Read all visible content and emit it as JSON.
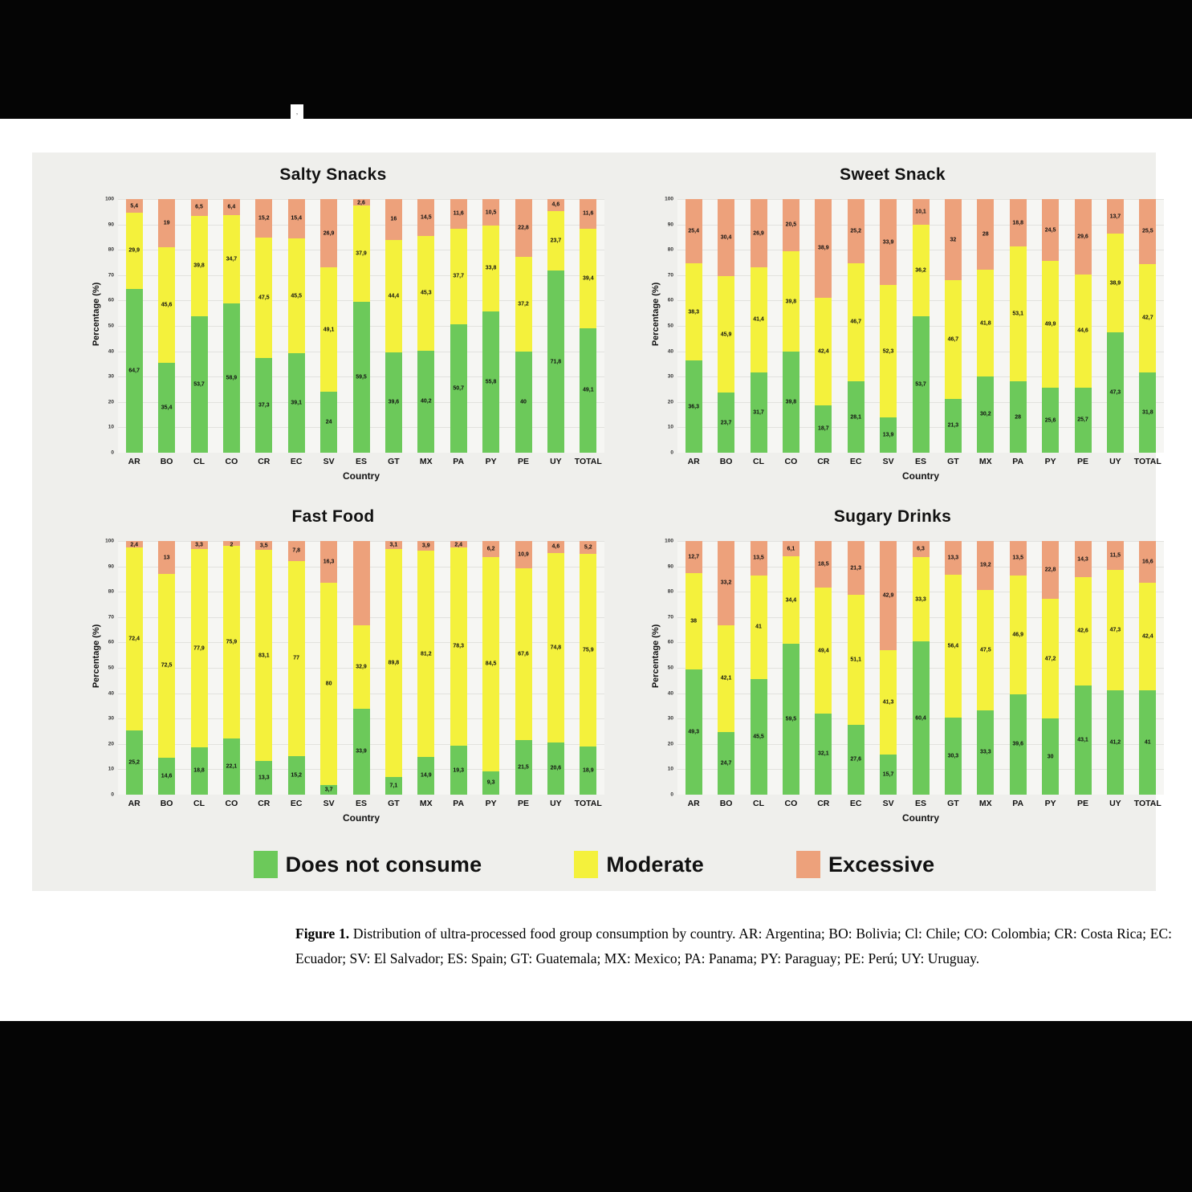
{
  "legend": [
    {
      "name": "Does not consume",
      "color": "#6cc95a"
    },
    {
      "name": "Moderate",
      "color": "#f4f13c"
    },
    {
      "name": "Excessive",
      "color": "#eda17b"
    }
  ],
  "caption": {
    "label": "Figure 1.",
    "text": " Distribution of ultra-processed food group consumption by country. AR: Argentina; BO: Bolivia; Cl: Chile; CO: Colombia; CR: Costa Rica; EC: Ecuador; SV: El Salvador; ES: Spain; GT: Guatemala; MX: Mexico; PA: Panama; PY: Paraguay; PE: Perú; UY: Uruguay."
  },
  "chart_data": {
    "type": "bar",
    "stacked": true,
    "ylabel": "Percentage (%)",
    "xlabel": "Country",
    "ylim": [
      0,
      100
    ],
    "yticks": [
      0,
      10,
      20,
      30,
      40,
      50,
      60,
      70,
      80,
      90,
      100
    ],
    "grid": true,
    "legend_position": "bottom",
    "categories": [
      "AR",
      "BO",
      "CL",
      "CO",
      "CR",
      "EC",
      "SV",
      "ES",
      "GT",
      "MX",
      "PA",
      "PY",
      "PE",
      "UY",
      "TOTAL"
    ],
    "charts": [
      {
        "key": "salty-snacks",
        "title": "Salty Snacks",
        "series": [
          {
            "name": "Does not consume",
            "values": [
              64.7,
              35.4,
              53.7,
              58.9,
              37.3,
              39.1,
              24,
              59.5,
              39.6,
              40.2,
              50.7,
              55.8,
              40,
              71.8,
              49.1
            ],
            "labels": [
              "64,7",
              "35,4",
              "53,7",
              "58,9",
              "37,3",
              "39,1",
              "24",
              "59,5",
              "39,6",
              "40,2",
              "50,7",
              "55,8",
              "40",
              "71,8",
              "49,1"
            ]
          },
          {
            "name": "Moderate",
            "values": [
              29.9,
              45.6,
              39.8,
              34.7,
              47.5,
              45.5,
              49.1,
              37.9,
              44.4,
              45.3,
              37.7,
              33.8,
              37.2,
              23.7,
              39.4
            ],
            "labels": [
              "29,9",
              "45,6",
              "39,8",
              "34,7",
              "47,5",
              "45,5",
              "49,1",
              "37,9",
              "44,4",
              "45,3",
              "37,7",
              "33,8",
              "37,2",
              "23,7",
              "39,4"
            ]
          },
          {
            "name": "Excessive",
            "values": [
              5.4,
              19,
              6.5,
              6.4,
              15.2,
              15.4,
              26.9,
              2.6,
              16,
              14.5,
              11.6,
              10.5,
              22.8,
              4.6,
              11.6
            ],
            "labels": [
              "5,4",
              "19",
              "6,5",
              "6,4",
              "15,2",
              "15,4",
              "26,9",
              "2,6",
              "16",
              "14,5",
              "11,6",
              "10,5",
              "22,8",
              "4,6",
              "11,6"
            ]
          }
        ]
      },
      {
        "key": "sweet-snack",
        "title": "Sweet Snack",
        "series": [
          {
            "name": "Does not consume",
            "values": [
              36.3,
              23.7,
              31.7,
              39.8,
              18.7,
              28.1,
              13.9,
              53.7,
              21.3,
              30.2,
              28,
              25.6,
              25.7,
              47.3,
              31.8
            ],
            "labels": [
              "36,3",
              "23,7",
              "31,7",
              "39,8",
              "18,7",
              "28,1",
              "13,9",
              "53,7",
              "21,3",
              "30,2",
              "28",
              "25,6",
              "25,7",
              "47,3",
              "31,8"
            ]
          },
          {
            "name": "Moderate",
            "values": [
              38.3,
              45.9,
              41.4,
              39.8,
              42.4,
              46.7,
              52.3,
              36.2,
              46.7,
              41.8,
              53.1,
              49.9,
              44.6,
              38.9,
              42.7
            ],
            "labels": [
              "38,3",
              "45,9",
              "41,4",
              "39,8",
              "42,4",
              "46,7",
              "52,3",
              "36,2",
              "46,7",
              "41,8",
              "53,1",
              "49,9",
              "44,6",
              "38,9",
              "42,7"
            ]
          },
          {
            "name": "Excessive",
            "values": [
              25.4,
              30.4,
              26.9,
              20.5,
              38.9,
              25.2,
              33.9,
              10.1,
              32,
              28,
              18.8,
              24.5,
              29.6,
              13.7,
              25.5
            ],
            "labels": [
              "25,4",
              "30,4",
              "26,9",
              "20,5",
              "38,9",
              "25,2",
              "33,9",
              "10,1",
              "32",
              "28",
              "18,8",
              "24,5",
              "29,6",
              "13,7",
              "25,5"
            ]
          }
        ]
      },
      {
        "key": "fast-food",
        "title": "Fast Food",
        "series": [
          {
            "name": "Does not consume",
            "values": [
              25.2,
              14.6,
              18.8,
              22.1,
              13.3,
              15.2,
              3.7,
              33.9,
              7.1,
              14.9,
              19.3,
              9.3,
              21.5,
              20.6,
              18.9
            ],
            "labels": [
              "25,2",
              "14,6",
              "18,8",
              "22,1",
              "13,3",
              "15,2",
              "3,7",
              "33,9",
              "7,1",
              "14,9",
              "19,3",
              "9,3",
              "21,5",
              "20,6",
              "18,9"
            ]
          },
          {
            "name": "Moderate",
            "values": [
              72.4,
              72.5,
              77.9,
              75.9,
              83.1,
              77,
              80,
              32.9,
              89.8,
              81.2,
              78.3,
              84.5,
              67.6,
              74.8,
              75.9
            ],
            "labels": [
              "72,4",
              "72,5",
              "77,9",
              "75,9",
              "83,1",
              "77",
              "80",
              "32,9",
              "89,8",
              "81,2",
              "78,3",
              "84,5",
              "67,6",
              "74,8",
              "75,9"
            ]
          },
          {
            "name": "Excessive",
            "values": [
              2.4,
              13,
              3.3,
              2,
              3.5,
              7.8,
              16.3,
              33.2,
              3.1,
              3.9,
              2.4,
              6.2,
              10.9,
              4.6,
              5.2
            ],
            "labels": [
              "2,4",
              "13",
              "3,3",
              "2",
              "3,5",
              "7,8",
              "16,3",
              "",
              "3,1",
              "3,9",
              "2,4",
              "6,2",
              "10,9",
              "4,6",
              "5,2"
            ]
          }
        ]
      },
      {
        "key": "sugary-drinks",
        "title": "Sugary Drinks",
        "series": [
          {
            "name": "Does not consume",
            "values": [
              49.3,
              24.7,
              45.5,
              59.5,
              32.1,
              27.6,
              15.7,
              60.4,
              30.3,
              33.3,
              39.6,
              30,
              43.1,
              41.2,
              41
            ],
            "labels": [
              "49,3",
              "24,7",
              "45,5",
              "59,5",
              "32,1",
              "27,6",
              "15,7",
              "60,4",
              "30,3",
              "33,3",
              "39,6",
              "30",
              "43,1",
              "41,2",
              "41"
            ]
          },
          {
            "name": "Moderate",
            "values": [
              38,
              42.1,
              41,
              34.4,
              49.4,
              51.1,
              41.3,
              33.3,
              56.4,
              47.5,
              46.9,
              47.2,
              42.6,
              47.3,
              42.4
            ],
            "labels": [
              "38",
              "42,1",
              "41",
              "34,4",
              "49,4",
              "51,1",
              "41,3",
              "33,3",
              "56,4",
              "47,5",
              "46,9",
              "47,2",
              "42,6",
              "47,3",
              "42,4"
            ]
          },
          {
            "name": "Excessive",
            "values": [
              12.7,
              33.2,
              13.5,
              6.1,
              18.5,
              21.3,
              42.9,
              6.3,
              13.3,
              19.2,
              13.5,
              22.8,
              14.3,
              11.5,
              16.6
            ],
            "labels": [
              "12,7",
              "33,2",
              "13,5",
              "6,1",
              "18,5",
              "21,3",
              "42,9",
              "6,3",
              "13,3",
              "19,2",
              "13,5",
              "22,8",
              "14,3",
              "11,5",
              "16,6"
            ]
          }
        ]
      }
    ]
  }
}
